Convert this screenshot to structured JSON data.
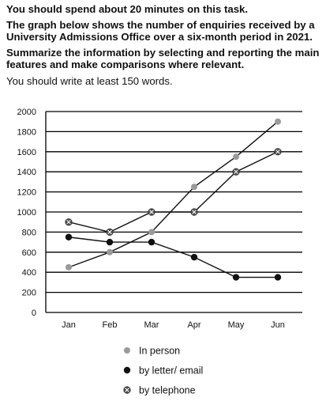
{
  "task": {
    "time_instruction": "You should spend about 20 minutes on this task.",
    "description": "The graph below shows the number of enquiries received by a University Admissions Office over a six-month period in 2021.",
    "summarize": "Summarize the information by selecting and reporting the main features and make comparisons where relevant.",
    "word_count": "You should write at least 150 words."
  },
  "chart_data": {
    "type": "line",
    "categories": [
      "Jan",
      "Feb",
      "Mar",
      "Apr",
      "May",
      "Jun"
    ],
    "ylim": [
      0,
      2000
    ],
    "yticks": [
      0,
      200,
      400,
      600,
      800,
      1000,
      1200,
      1400,
      1600,
      1800,
      2000
    ],
    "grid": "horizontal",
    "legend_position": "bottom",
    "series": [
      {
        "name": "In person",
        "marker": "grey-dot",
        "values": [
          450,
          600,
          800,
          1250,
          1550,
          1900
        ]
      },
      {
        "name": "by letter/ email",
        "marker": "black-dot",
        "values": [
          750,
          700,
          700,
          550,
          350,
          350
        ]
      },
      {
        "name": "by telephone",
        "marker": "crossed-dot",
        "values": [
          900,
          800,
          1000,
          1000,
          1400,
          1600
        ]
      }
    ],
    "colors": {
      "in_person": "#9a9a9a",
      "letter": "#111111",
      "telephone": "#555555"
    }
  }
}
